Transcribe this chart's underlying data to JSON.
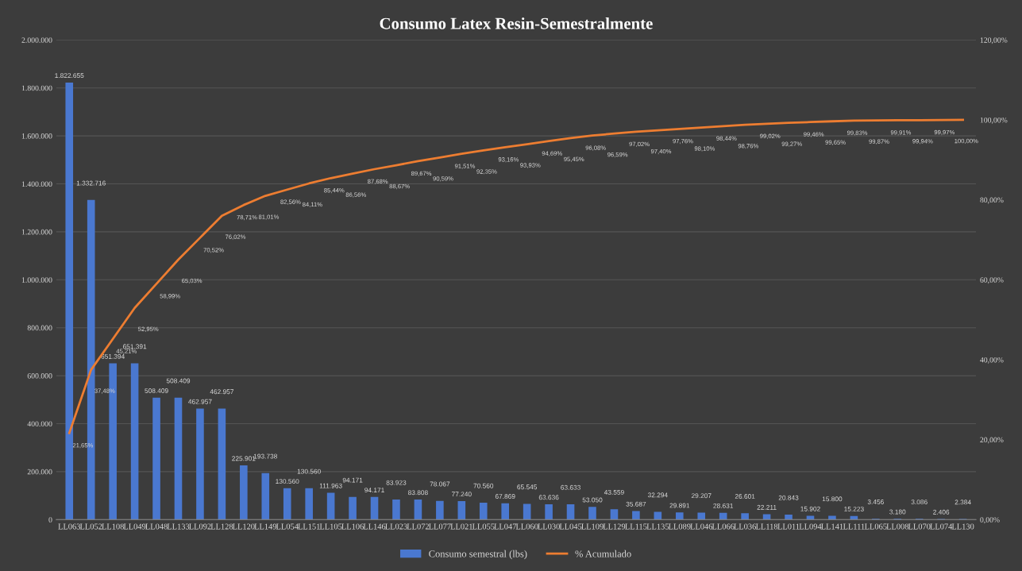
{
  "chart_data": {
    "type": "bar",
    "title": "Consumo Latex Resin-Semestralmente",
    "categories": [
      "LL063",
      "LL052",
      "LL108",
      "LL049",
      "LL048",
      "LL133",
      "LL092",
      "LL128",
      "LL120",
      "LL149",
      "LL054",
      "LL151",
      "LL105",
      "LL106",
      "LL146",
      "LL023",
      "LL072",
      "LL077",
      "LL021",
      "LL055",
      "LL047",
      "LL060",
      "LL030",
      "LL045",
      "LL109",
      "LL129",
      "LL115",
      "LL135",
      "LL089",
      "LL046",
      "LL066",
      "LL036",
      "LL118",
      "LL011",
      "LL094",
      "LL141",
      "LL111",
      "LL065",
      "LL008",
      "LL070",
      "LL074",
      "LL130"
    ],
    "series": [
      {
        "name": "Consumo semestral (lbs)",
        "color": "#4a78d0",
        "values": [
          1822655,
          1332716,
          651394,
          651391,
          508409,
          508409,
          462957,
          462957,
          225901,
          193738,
          130560,
          130560,
          111963,
          94171,
          94171,
          83923,
          83808,
          78067,
          77240,
          70560,
          67869,
          65545,
          63636,
          63633,
          53050,
          43559,
          35687,
          32294,
          29891,
          29207,
          28631,
          26601,
          22211,
          20843,
          15902,
          15800,
          15223,
          3456,
          3180,
          3086,
          2406,
          2384
        ],
        "value_labels": [
          "1.822.655",
          "1.332.716",
          "651.394",
          "651.391",
          "508.409",
          "508.409",
          "462.957",
          "462.957",
          "225.901",
          "193.738",
          "130.560",
          "130.560",
          "111.963",
          "94.171",
          "94.171",
          "83.923",
          "83.808",
          "78.067",
          "77.240",
          "70.560",
          "67.869",
          "65.545",
          "63.636",
          "63.633",
          "53.050",
          "43.559",
          "35.687",
          "32.294",
          "29.891",
          "29.207",
          "28.631",
          "26.601",
          "22.211",
          "20.843",
          "15.902",
          "15.800",
          "15.223",
          "3.456",
          "3.180",
          "3.086",
          "2.406",
          "2.384"
        ]
      },
      {
        "name": "% Acumulado",
        "type": "line",
        "axis": "y2",
        "color": "#ed7d31",
        "values": [
          21.65,
          37.48,
          45.21,
          52.95,
          58.99,
          65.03,
          70.52,
          76.02,
          78.71,
          81.01,
          82.56,
          84.11,
          85.44,
          86.56,
          87.68,
          88.67,
          89.67,
          90.59,
          91.51,
          92.35,
          93.16,
          93.93,
          94.69,
          95.45,
          96.08,
          96.59,
          97.02,
          97.4,
          97.76,
          98.1,
          98.44,
          98.76,
          99.02,
          99.27,
          99.46,
          99.65,
          99.83,
          99.87,
          99.91,
          99.94,
          99.97,
          100.0
        ],
        "value_labels": [
          "21,65%",
          "37,48%",
          "45,21%",
          "52,95%",
          "58,99%",
          "65,03%",
          "70,52%",
          "76,02%",
          "78,71%",
          "81,01%",
          "82,56%",
          "84,11%",
          "85,44%",
          "86,56%",
          "87,68%",
          "88,67%",
          "89,67%",
          "90,59%",
          "91,51%",
          "92,35%",
          "93,16%",
          "93,93%",
          "94,69%",
          "95,45%",
          "96,08%",
          "96,59%",
          "97,02%",
          "97,40%",
          "97,76%",
          "98,10%",
          "98,44%",
          "98,76%",
          "99,02%",
          "99,27%",
          "99,46%",
          "99,65%",
          "99,83%",
          "99,87%",
          "99,91%",
          "99,94%",
          "99,97%",
          "100,00%"
        ]
      }
    ],
    "ylim": [
      0,
      2000000
    ],
    "yticks": [
      0,
      {
        "value": 200000,
        "label": "200.000"
      },
      {
        "value": 400000,
        "label": "400.000"
      },
      {
        "value": 600000,
        "label": "600.000"
      },
      {
        "value": 800000,
        "label": "800.000"
      },
      {
        "value": 1000000,
        "label": "1.000.000"
      },
      {
        "value": 1200000,
        "label": "1.200.000"
      },
      {
        "value": 1400000,
        "label": "1.400.000"
      },
      {
        "value": 1600000,
        "label": "1.600.000"
      },
      {
        "value": 1800000,
        "label": "1.800.000"
      },
      {
        "value": 2000000,
        "label": "2.000.000"
      }
    ],
    "y2lim": [
      0,
      120
    ],
    "y2ticks": [
      {
        "value": 0,
        "label": "0,00%"
      },
      {
        "value": 20,
        "label": "20,00%"
      },
      {
        "value": 40,
        "label": "40,00%"
      },
      {
        "value": 60,
        "label": "60,00%"
      },
      {
        "value": 80,
        "label": "80,00%"
      },
      {
        "value": 100,
        "label": "100,00%"
      },
      {
        "value": 120,
        "label": "120,00%"
      }
    ],
    "grid": "y",
    "legend": "bottom",
    "marker": "none",
    "line_style": "solid"
  }
}
